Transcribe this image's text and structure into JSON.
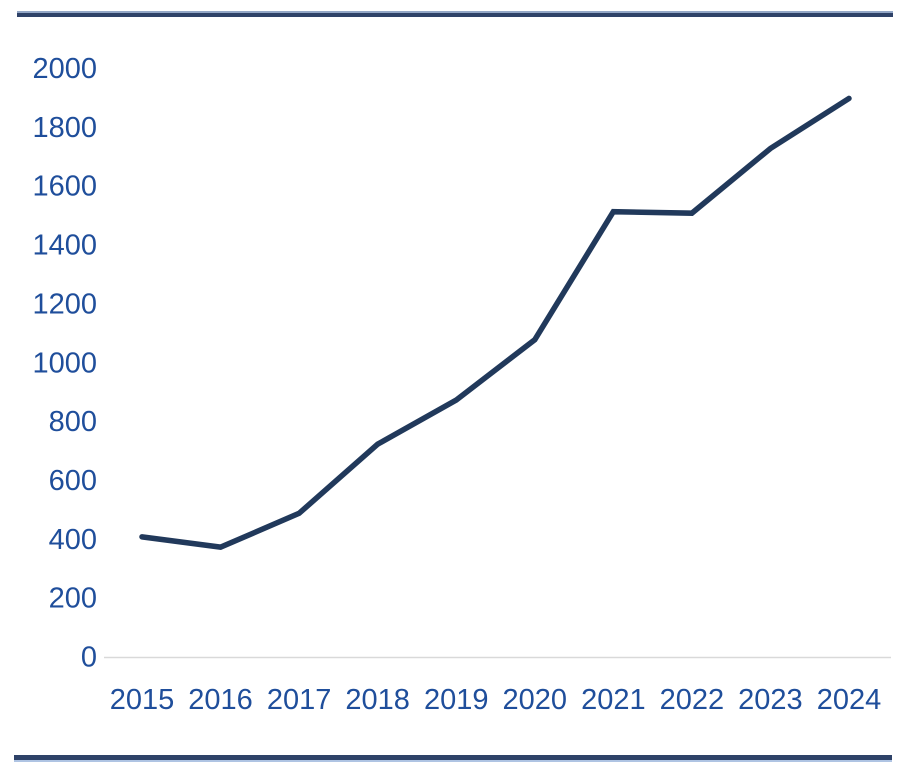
{
  "page": {
    "background": "#ffffff",
    "top_rule_color_dark": "#2E4268",
    "top_rule_color_light": "#93A7C6",
    "bottom_rule_color_dark": "#2E4268",
    "bottom_rule_color_light": "#AFC4E3"
  },
  "chart_data": {
    "type": "line",
    "title": "",
    "xlabel": "",
    "ylabel": "",
    "x": [
      "2015",
      "2016",
      "2017",
      "2018",
      "2019",
      "2020",
      "2021",
      "2022",
      "2023",
      "2024"
    ],
    "values": [
      410,
      375,
      490,
      725,
      875,
      1080,
      1515,
      1510,
      1730,
      1900
    ],
    "ylim": [
      0,
      2000
    ],
    "ytick_step": 200,
    "ytick_labels": [
      "0",
      "200",
      "400",
      "600",
      "800",
      "1000",
      "1200",
      "1400",
      "1600",
      "1800",
      "2000"
    ],
    "grid": false,
    "legend": null,
    "line_color": "#21395B",
    "line_width": 5.5,
    "label_color": "#1F4E9B",
    "axis_line_color": "#D9D9D9"
  }
}
